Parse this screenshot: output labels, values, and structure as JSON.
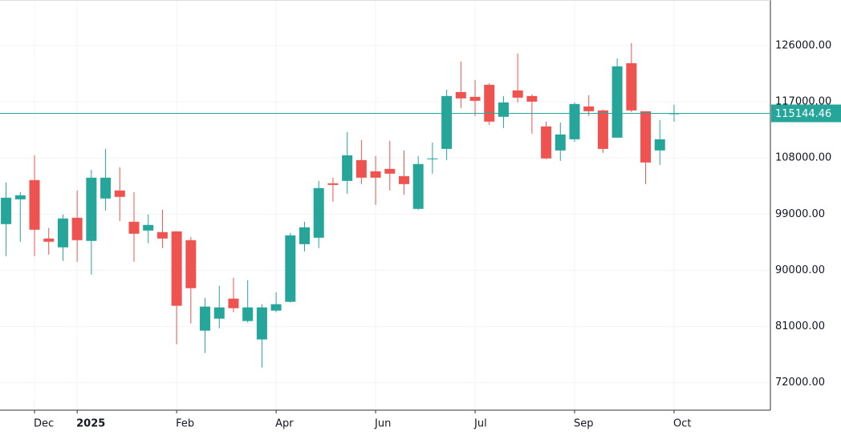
{
  "chart_data": {
    "type": "candlestick",
    "categories": [
      null,
      null,
      "Dec",
      null,
      null,
      "2025",
      null,
      null,
      null,
      null,
      null,
      null,
      "Feb",
      null,
      null,
      null,
      null,
      null,
      null,
      "Apr",
      null,
      null,
      null,
      null,
      null,
      null,
      "Jun",
      null,
      null,
      null,
      null,
      null,
      null,
      "Jul",
      null,
      null,
      null,
      null,
      null,
      null,
      "Sep",
      null,
      null,
      null,
      null,
      null,
      null,
      "Oct"
    ],
    "open": [
      97400,
      101370,
      104450,
      95090,
      93680,
      98420,
      94710,
      101500,
      102790,
      97780,
      96370,
      96120,
      96240,
      94830,
      80340,
      82260,
      85470,
      81880,
      78930,
      83550,
      84960,
      94190,
      95220,
      103940,
      104320,
      107660,
      105860,
      106250,
      105090,
      99840,
      107790,
      109450,
      118560,
      117790,
      119720,
      114590,
      118820,
      117920,
      113050,
      109200,
      110990,
      116250,
      115610,
      111250,
      123180,
      115480,
      109200,
      115100
    ],
    "high": [
      104070,
      102530,
      108430,
      96760,
      98940,
      102790,
      106120,
      109450,
      106500,
      102530,
      98940,
      99710,
      96240,
      95350,
      85600,
      87520,
      88810,
      88420,
      84570,
      86500,
      95990,
      97780,
      104320,
      104840,
      112150,
      110870,
      108300,
      110740,
      109200,
      108300,
      110480,
      118950,
      123440,
      120490,
      119970,
      117920,
      124720,
      118180,
      113820,
      113690,
      116890,
      118050,
      115740,
      123950,
      126390,
      115480,
      114070,
      116510
    ],
    "low": [
      92270,
      94580,
      92270,
      92520,
      91500,
      91370,
      89320,
      99580,
      97910,
      91370,
      94320,
      93550,
      78160,
      81490,
      76750,
      80720,
      83290,
      81620,
      74440,
      83290,
      84830,
      93040,
      93550,
      100990,
      102270,
      103810,
      100480,
      102790,
      102140,
      99710,
      105480,
      107660,
      116000,
      114710,
      113300,
      112790,
      116890,
      111890,
      107790,
      107530,
      110610,
      114710,
      108810,
      111250,
      115350,
      103810,
      106890,
      113820
    ],
    "close": [
      101630,
      102020,
      96500,
      94580,
      98300,
      94830,
      104840,
      104840,
      101760,
      95860,
      97270,
      95090,
      84320,
      87140,
      84190,
      84060,
      83930,
      84060,
      84060,
      84570,
      95600,
      96890,
      103170,
      103680,
      108430,
      104840,
      104840,
      105480,
      103810,
      107020,
      107920,
      117920,
      117540,
      117150,
      113820,
      116890,
      117660,
      117020,
      107920,
      111760,
      116640,
      115480,
      109450,
      122670,
      115610,
      107270,
      110990,
      115144.46
    ],
    "up_color": "#26a69a",
    "down_color": "#ef5350",
    "last_price": 115144.46,
    "last_price_color": "#26a69a",
    "ylim": [
      67600,
      133300
    ],
    "yticks": [
      {
        "value": 72000,
        "label": "72000.00"
      },
      {
        "value": 81000,
        "label": "81000.00"
      },
      {
        "value": 90000,
        "label": "90000.00"
      },
      {
        "value": 99000,
        "label": "99000.00"
      },
      {
        "value": 108000,
        "label": "108000.00"
      },
      {
        "value": 117000,
        "label": "117000.00"
      },
      {
        "value": 126000,
        "label": "126000.00"
      }
    ],
    "grid": true
  }
}
